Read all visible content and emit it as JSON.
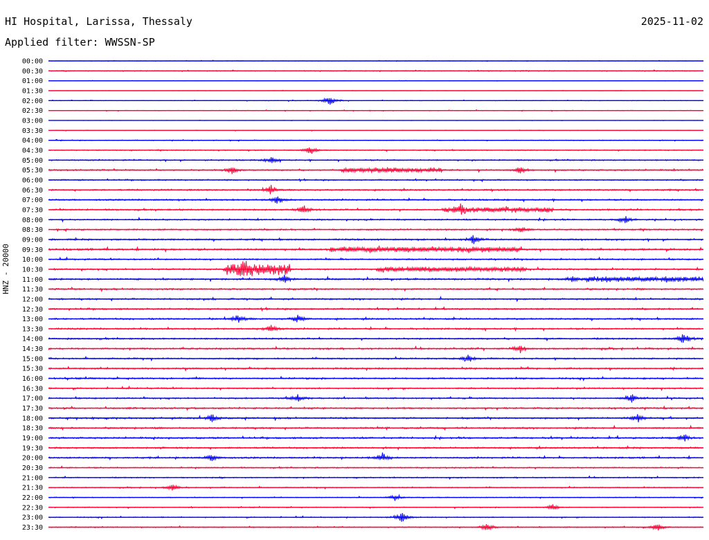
{
  "header": {
    "station": "HI Hospital, Larissa, Thessaly",
    "date": "2025-11-02",
    "filter": "Applied filter: WWSSN-SP"
  },
  "chart_data": {
    "type": "line",
    "ylabel": "HNZ - 20000",
    "colors": {
      "even": "#0000ff",
      "odd": "#ff0033"
    },
    "rows": [
      "00:00",
      "00:30",
      "01:00",
      "01:30",
      "02:00",
      "02:30",
      "03:00",
      "03:30",
      "04:00",
      "04:30",
      "05:00",
      "05:30",
      "06:00",
      "06:30",
      "07:00",
      "07:30",
      "08:00",
      "08:30",
      "09:00",
      "09:30",
      "10:00",
      "10:30",
      "11:00",
      "11:30",
      "12:00",
      "12:30",
      "13:00",
      "13:30",
      "14:00",
      "14:30",
      "15:00",
      "15:30",
      "16:00",
      "16:30",
      "17:00",
      "17:30",
      "18:00",
      "18:30",
      "19:00",
      "19:30",
      "20:00",
      "20:30",
      "21:00",
      "21:30",
      "22:00",
      "22:30",
      "23:00",
      "23:30"
    ],
    "noise": [
      0.3,
      0.5,
      0.2,
      0.2,
      0.4,
      0.4,
      0.2,
      0.3,
      0.5,
      0.6,
      0.8,
      0.9,
      0.8,
      0.9,
      0.9,
      1.0,
      0.9,
      0.9,
      1.0,
      1.2,
      0.9,
      1.0,
      1.1,
      1.0,
      1.0,
      1.0,
      1.0,
      1.0,
      1.0,
      1.0,
      0.9,
      1.0,
      1.0,
      0.9,
      0.9,
      1.0,
      1.0,
      1.0,
      1.1,
      1.0,
      1.0,
      0.8,
      0.7,
      0.6,
      0.5,
      0.6,
      0.6,
      0.6
    ],
    "events": [
      {
        "row": 4,
        "x": 0.43,
        "amp": 8
      },
      {
        "row": 9,
        "x": 0.4,
        "amp": 6
      },
      {
        "row": 10,
        "x": 0.34,
        "amp": 5
      },
      {
        "row": 11,
        "x": 0.28,
        "amp": 6
      },
      {
        "row": 11,
        "x": 0.72,
        "amp": 5
      },
      {
        "row": 13,
        "x": 0.34,
        "amp": 7
      },
      {
        "row": 14,
        "x": 0.35,
        "amp": 7
      },
      {
        "row": 15,
        "x": 0.39,
        "amp": 6
      },
      {
        "row": 15,
        "x": 0.63,
        "amp": 7
      },
      {
        "row": 16,
        "x": 0.88,
        "amp": 6
      },
      {
        "row": 17,
        "x": 0.72,
        "amp": 5
      },
      {
        "row": 18,
        "x": 0.65,
        "amp": 7
      },
      {
        "row": 21,
        "x": 0.3,
        "amp": 7
      },
      {
        "row": 22,
        "x": 0.36,
        "amp": 6
      },
      {
        "row": 22,
        "x": 0.8,
        "amp": 5
      },
      {
        "row": 26,
        "x": 0.29,
        "amp": 7
      },
      {
        "row": 26,
        "x": 0.38,
        "amp": 6
      },
      {
        "row": 27,
        "x": 0.34,
        "amp": 6
      },
      {
        "row": 28,
        "x": 0.97,
        "amp": 9
      },
      {
        "row": 29,
        "x": 0.72,
        "amp": 6
      },
      {
        "row": 30,
        "x": 0.64,
        "amp": 6
      },
      {
        "row": 34,
        "x": 0.38,
        "amp": 6
      },
      {
        "row": 34,
        "x": 0.89,
        "amp": 7
      },
      {
        "row": 36,
        "x": 0.25,
        "amp": 6
      },
      {
        "row": 36,
        "x": 0.9,
        "amp": 6
      },
      {
        "row": 38,
        "x": 0.97,
        "amp": 6
      },
      {
        "row": 40,
        "x": 0.25,
        "amp": 6
      },
      {
        "row": 40,
        "x": 0.51,
        "amp": 7
      },
      {
        "row": 43,
        "x": 0.19,
        "amp": 5
      },
      {
        "row": 44,
        "x": 0.53,
        "amp": 5
      },
      {
        "row": 45,
        "x": 0.77,
        "amp": 5
      },
      {
        "row": 46,
        "x": 0.54,
        "amp": 9
      },
      {
        "row": 47,
        "x": 0.67,
        "amp": 6
      },
      {
        "row": 47,
        "x": 0.93,
        "amp": 6
      }
    ],
    "bursts": [
      {
        "row": 11,
        "start": 0.45,
        "end": 0.6,
        "amp": 3
      },
      {
        "row": 15,
        "start": 0.6,
        "end": 0.77,
        "amp": 3
      },
      {
        "row": 19,
        "start": 0.43,
        "end": 0.72,
        "amp": 3
      },
      {
        "row": 21,
        "start": 0.27,
        "end": 0.37,
        "amp": 8
      },
      {
        "row": 21,
        "start": 0.5,
        "end": 0.73,
        "amp": 3
      },
      {
        "row": 22,
        "start": 0.82,
        "end": 1.0,
        "amp": 3
      }
    ]
  }
}
